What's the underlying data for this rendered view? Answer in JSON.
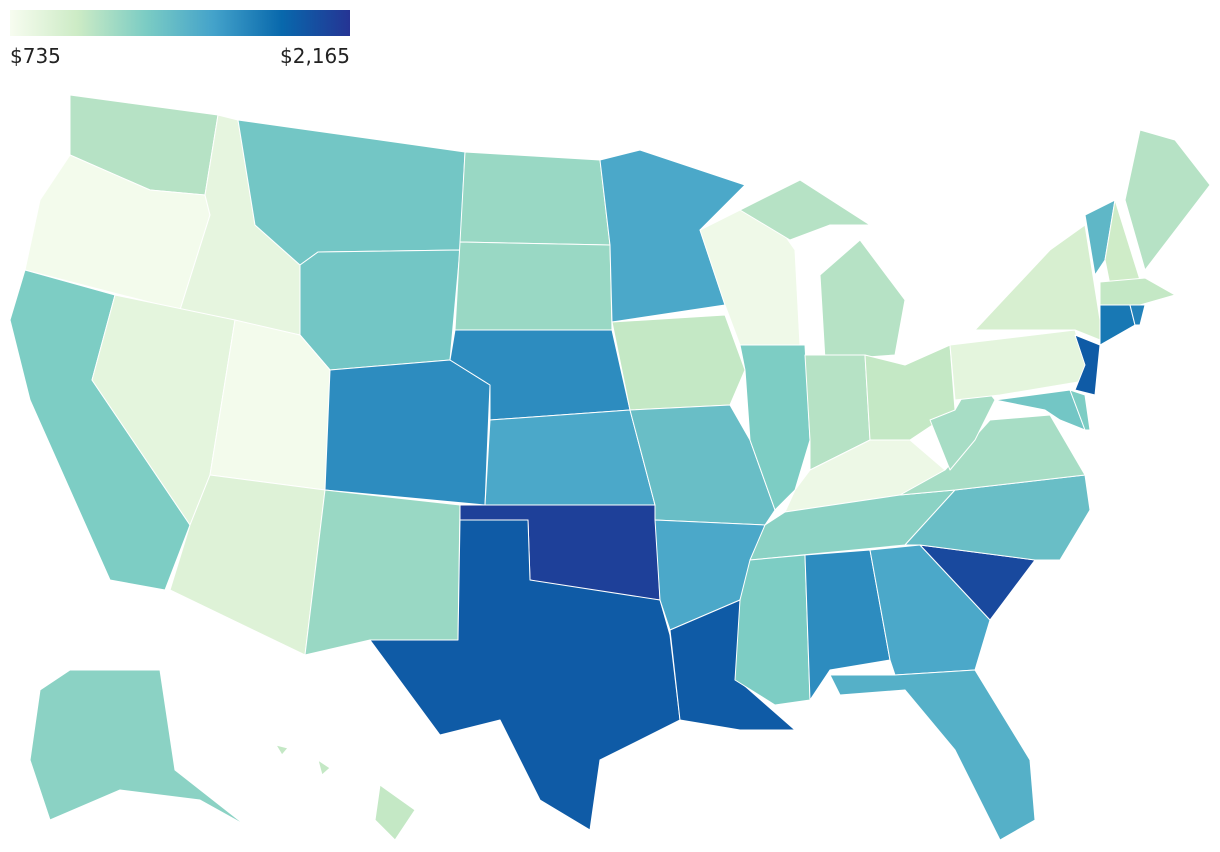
{
  "chart_data": {
    "type": "choropleth",
    "colorbar": {
      "min": {
        "value": 735,
        "label": "$735"
      },
      "max": {
        "value": 2165,
        "label": "$2,165"
      }
    },
    "colors": [
      "#f7fcf0",
      "#ccebc5",
      "#7bccc4",
      "#43a2ca",
      "#0868ac",
      "#253494"
    ],
    "values": [
      1100,
      760,
      850,
      1350,
      1350,
      1300,
      860,
      760,
      900,
      1700,
      1200,
      1200,
      1200,
      1700,
      1550,
      2100,
      1950,
      1550,
      1050,
      1400,
      1550,
      1950,
      790,
      1300,
      1100,
      1100,
      1050,
      800,
      1250,
      1300,
      1700,
      1550,
      1500,
      2050,
      1400,
      1150,
      1150,
      860,
      950,
      1450,
      1000,
      1100,
      1050,
      1800,
      1750,
      1950,
      1350,
      1300,
      1250,
      1050,
      1300
    ]
  }
}
